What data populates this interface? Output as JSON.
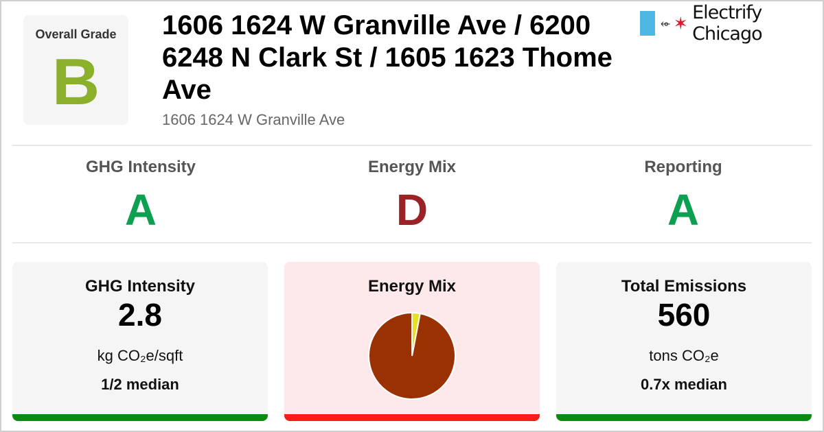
{
  "overall": {
    "label": "Overall Grade",
    "grade": "B",
    "color": "#8ab02c"
  },
  "header": {
    "title": "1606 1624 W Granville Ave / 6200 6248 N Clark St / 1605 1623 Thome Ave",
    "subtitle": "1606 1624 W Granville Ave"
  },
  "logo": {
    "text": "Electrify Chicago",
    "plug_icon": "plug-icon",
    "star_icon": "chicago-star-icon",
    "box_color": "#4fb7e4",
    "star_color": "#e3182d"
  },
  "grades": [
    {
      "label": "GHG Intensity",
      "grade": "A",
      "color": "#0ca050"
    },
    {
      "label": "Energy Mix",
      "grade": "D",
      "color": "#9b2226"
    },
    {
      "label": "Reporting",
      "grade": "A",
      "color": "#0ca050"
    }
  ],
  "cards": {
    "ghg": {
      "title": "GHG Intensity",
      "value": "2.8",
      "unit": "kg CO₂e/sqft",
      "median": "1/2 median",
      "bar_color": "#0e8a14"
    },
    "mix": {
      "title": "Energy Mix",
      "bar_color": "#ff1a1a"
    },
    "emissions": {
      "title": "Total Emissions",
      "value": "560",
      "unit": "tons CO₂e",
      "median": "0.7x median",
      "bar_color": "#0e8a14"
    }
  },
  "chart_data": {
    "type": "pie",
    "title": "Energy Mix",
    "slices": [
      {
        "share": 0.97,
        "color": "#9a3103"
      },
      {
        "share": 0.03,
        "color": "#e8e020"
      }
    ]
  }
}
